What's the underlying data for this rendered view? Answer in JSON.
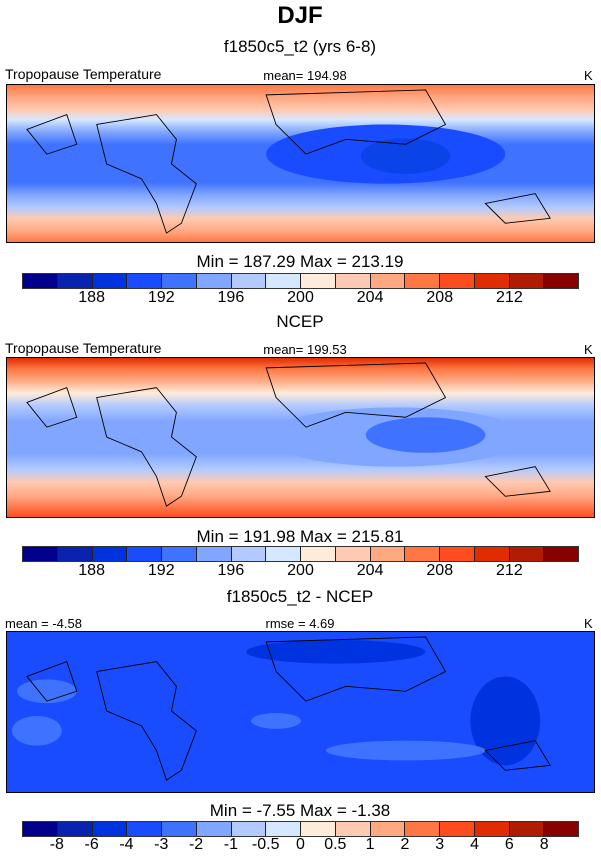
{
  "title": "DJF",
  "units": "K",
  "colors": [
    "#00008c",
    "#0a22b0",
    "#0033e0",
    "#1a4cff",
    "#3f72ff",
    "#80a6ff",
    "#b2caff",
    "#d6e8ff",
    "#ffebd9",
    "#ffcab2",
    "#ffa882",
    "#ff7844",
    "#ff4c1f",
    "#e02c00",
    "#b01c00",
    "#880000"
  ],
  "panels": [
    {
      "title": "f1850c5_t2 (yrs 6-8)",
      "left": "Tropopause Temperature",
      "center": "mean= 194.98",
      "right": "K",
      "stats": "Min = 187.29 Max = 213.19",
      "labels": [
        "",
        "188",
        "",
        "192",
        "",
        "196",
        "",
        "200",
        "",
        "204",
        "",
        "208",
        "",
        "212",
        ""
      ]
    },
    {
      "title": "NCEP",
      "left": "Tropopause Temperature",
      "center": "mean= 199.53",
      "right": "K",
      "stats": "Min = 191.98 Max = 215.81",
      "labels": [
        "",
        "188",
        "",
        "192",
        "",
        "196",
        "",
        "200",
        "",
        "204",
        "",
        "208",
        "",
        "212",
        ""
      ]
    },
    {
      "title": "f1850c5_t2 - NCEP",
      "left": "mean =  -4.58",
      "center": "rmse =   4.69",
      "right": "K",
      "stats": "Min =  -7.55 Max =  -1.38",
      "labels": [
        "-8",
        "-6",
        "-4",
        "-3",
        "-2",
        "-1",
        "-0.5",
        "0",
        "0.5",
        "1",
        "2",
        "3",
        "4",
        "6",
        "8"
      ]
    }
  ]
}
